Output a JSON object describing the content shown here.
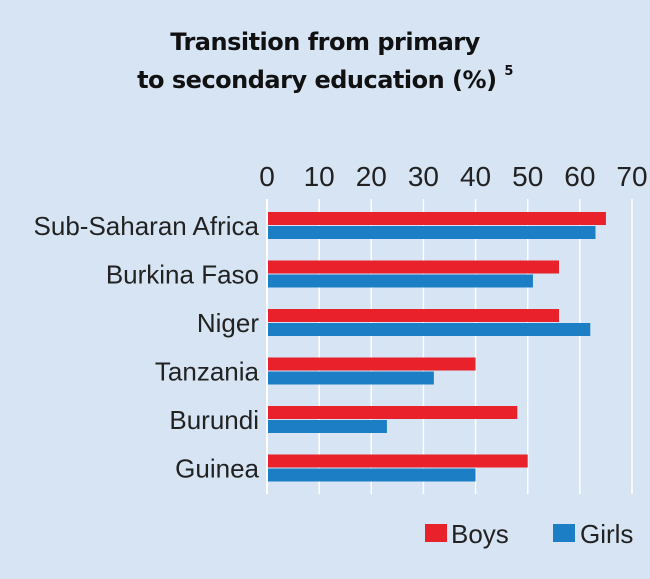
{
  "title_line1": "Transition from primary",
  "title_line2": "to secondary education (%)",
  "title_footnote": "5",
  "chart_data": {
    "type": "bar",
    "orientation": "horizontal",
    "categories": [
      "Sub-Saharan Africa",
      "Burkina Faso",
      "Niger",
      "Tanzania",
      "Burundi",
      "Guinea"
    ],
    "series": [
      {
        "name": "Boys",
        "color": "#e8212b",
        "values": [
          65,
          56,
          56,
          40,
          48,
          50
        ]
      },
      {
        "name": "Girls",
        "color": "#1c7fc6",
        "values": [
          63,
          51,
          62,
          32,
          23,
          40
        ]
      }
    ],
    "xlim": [
      0,
      70
    ],
    "xticks": [
      0,
      10,
      20,
      30,
      40,
      50,
      60,
      70
    ],
    "grid": true,
    "legend_position": "bottom-right"
  }
}
